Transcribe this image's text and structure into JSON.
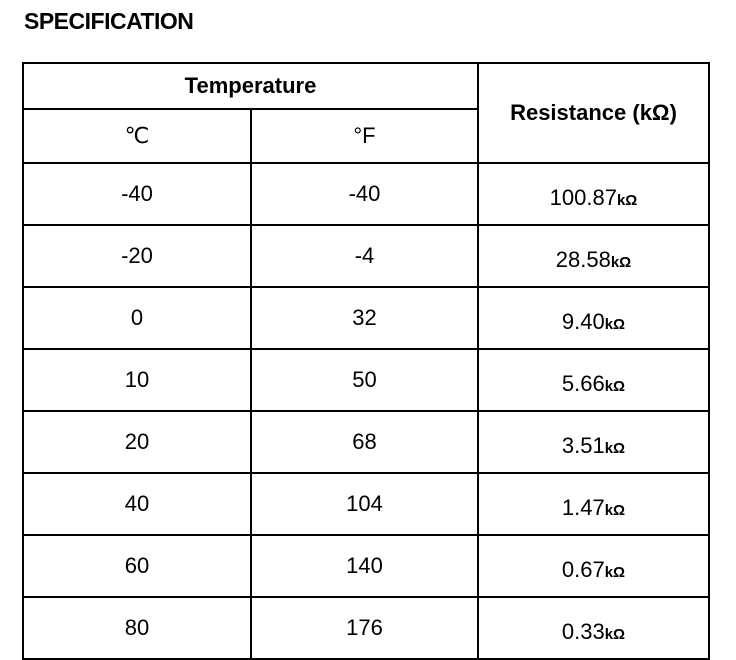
{
  "title": "SPECIFICATION",
  "table": {
    "header": {
      "group": "Temperature",
      "celsius": "℃",
      "fahrenheit": "°F",
      "resistance": "Resistance (kΩ)"
    },
    "rows": [
      {
        "celsius": "-40",
        "fahrenheit": "-40",
        "resistance": "100.87",
        "unit": "kΩ"
      },
      {
        "celsius": "-20",
        "fahrenheit": "-4",
        "resistance": "28.58",
        "unit": "kΩ"
      },
      {
        "celsius": "0",
        "fahrenheit": "32",
        "resistance": "9.40",
        "unit": "kΩ"
      },
      {
        "celsius": "10",
        "fahrenheit": "50",
        "resistance": "5.66",
        "unit": "kΩ"
      },
      {
        "celsius": "20",
        "fahrenheit": "68",
        "resistance": "3.51",
        "unit": "kΩ"
      },
      {
        "celsius": "40",
        "fahrenheit": "104",
        "resistance": "1.47",
        "unit": "kΩ"
      },
      {
        "celsius": "60",
        "fahrenheit": "140",
        "resistance": "0.67",
        "unit": "kΩ"
      },
      {
        "celsius": "80",
        "fahrenheit": "176",
        "resistance": "0.33",
        "unit": "kΩ"
      }
    ]
  }
}
